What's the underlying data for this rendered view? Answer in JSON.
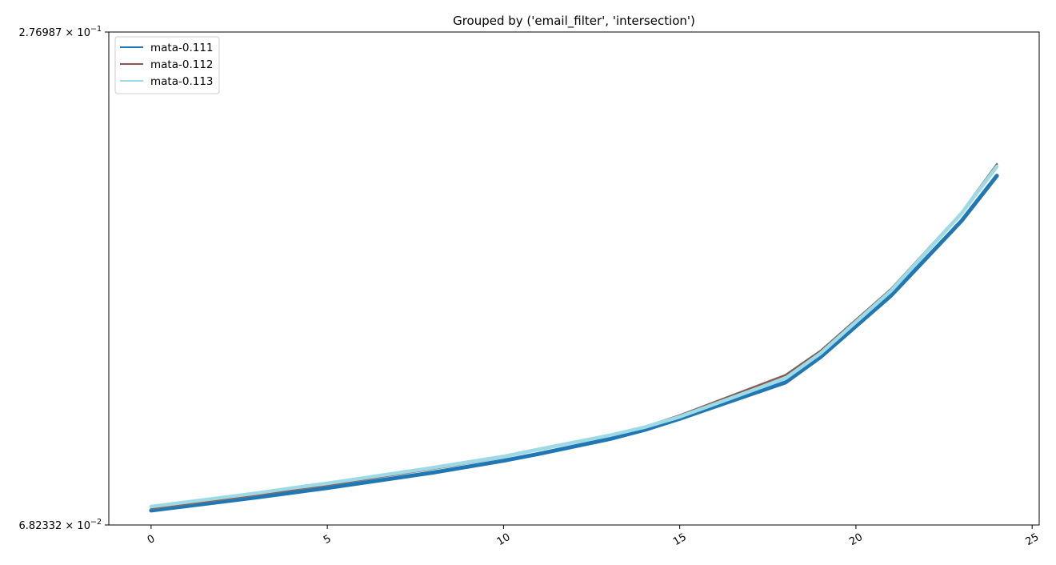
{
  "chart_data": {
    "type": "line",
    "title": "Grouped by ('email_filter', 'intersection')",
    "xlabel": "",
    "ylabel": "",
    "xlim": [
      -1.2,
      25.2
    ],
    "ylim": [
      0.0682332,
      0.276987
    ],
    "y_scale": "log",
    "x_ticks": [
      0,
      5,
      10,
      15,
      20,
      25
    ],
    "y_tick_labels": [
      {
        "value": 0.276987,
        "mantissa": "2.76987",
        "exponent": "−1"
      },
      {
        "value": 0.0682332,
        "mantissa": "6.82332",
        "exponent": "−2"
      }
    ],
    "legend": {
      "location": "upper left"
    },
    "grid": false,
    "x": [
      0,
      3,
      4,
      5,
      8,
      10,
      11,
      13,
      14,
      15,
      18,
      19,
      21,
      23,
      24
    ],
    "series": [
      {
        "name": "mata-0.111",
        "color": "#1f77b4",
        "values": [
          0.0711,
          0.0738,
          0.0748,
          0.0758,
          0.0792,
          0.0819,
          0.0835,
          0.0871,
          0.0894,
          0.0923,
          0.1023,
          0.11,
          0.131,
          0.162,
          0.1841
        ]
      },
      {
        "name": "mata-0.112",
        "color": "#8c564b",
        "values": [
          0.0715,
          0.0743,
          0.0754,
          0.0764,
          0.08,
          0.0827,
          0.0845,
          0.088,
          0.0902,
          0.0932,
          0.1045,
          0.112,
          0.1335,
          0.166,
          0.1903
        ]
      },
      {
        "name": "mata-0.113",
        "color": "#9edae5",
        "values": [
          0.0719,
          0.0747,
          0.0758,
          0.0768,
          0.0803,
          0.0829,
          0.0846,
          0.088,
          0.0901,
          0.0928,
          0.1035,
          0.1112,
          0.1328,
          0.1655,
          0.189
        ]
      }
    ]
  }
}
